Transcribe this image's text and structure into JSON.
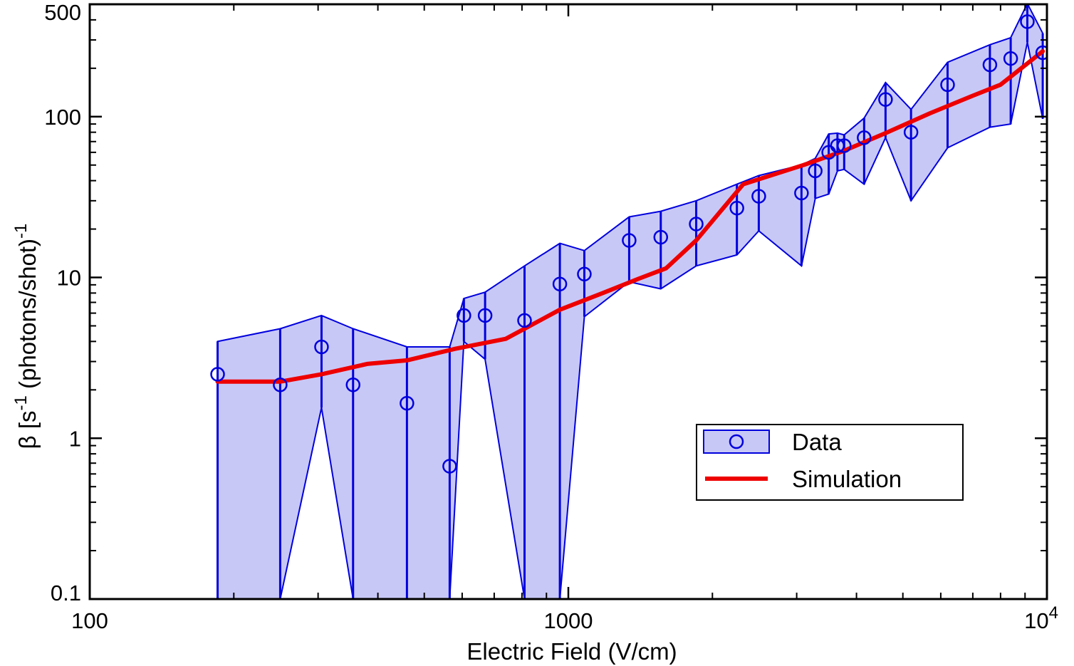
{
  "chart_data": {
    "type": "scatter",
    "xlabel": "Electric Field (V/cm)",
    "ylabel": {
      "prefix": "β [s",
      "sup1": "-1",
      "middle": " (photons/shot)",
      "sup2": "-1"
    },
    "x_scale": "log",
    "y_scale": "log",
    "xlim": [
      100,
      10000
    ],
    "ylim": [
      0.1,
      500
    ],
    "x_ticks": [
      {
        "value": 100,
        "label": "100"
      },
      {
        "value": 1000,
        "label": "1000"
      },
      {
        "value": 10000,
        "label": "10",
        "sup": "4"
      }
    ],
    "y_ticks": [
      {
        "value": 0.1,
        "label": "0.1"
      },
      {
        "value": 1,
        "label": "1"
      },
      {
        "value": 10,
        "label": "10"
      },
      {
        "value": 100,
        "label": "100"
      },
      {
        "value": 500,
        "label": "500"
      }
    ],
    "grid": false,
    "legend_position": "lower-right",
    "series": [
      {
        "name": "Data",
        "type": "scatter-with-band",
        "color": "#0000dd",
        "band_fill": "#c8c8f7",
        "points": [
          {
            "x": 185,
            "y": 2.5,
            "lo": 0.1,
            "hi": 4.0
          },
          {
            "x": 250,
            "y": 2.15,
            "lo": 0.1,
            "hi": 4.8
          },
          {
            "x": 305,
            "y": 3.7,
            "lo": 1.55,
            "hi": 5.8
          },
          {
            "x": 355,
            "y": 2.15,
            "lo": 0.1,
            "hi": 4.8
          },
          {
            "x": 460,
            "y": 1.65,
            "lo": 0.1,
            "hi": 3.7
          },
          {
            "x": 565,
            "y": 0.67,
            "lo": 0.1,
            "hi": 3.7
          },
          {
            "x": 605,
            "y": 5.8,
            "lo": 4.0,
            "hi": 7.4
          },
          {
            "x": 670,
            "y": 5.8,
            "lo": 3.1,
            "hi": 8.1
          },
          {
            "x": 810,
            "y": 5.4,
            "lo": 0.1,
            "hi": 11.8
          },
          {
            "x": 960,
            "y": 9.1,
            "lo": 0.1,
            "hi": 16.3
          },
          {
            "x": 1080,
            "y": 10.5,
            "lo": 5.7,
            "hi": 14.7
          },
          {
            "x": 1340,
            "y": 17.0,
            "lo": 9.4,
            "hi": 23.8
          },
          {
            "x": 1560,
            "y": 17.8,
            "lo": 8.5,
            "hi": 25.8
          },
          {
            "x": 1850,
            "y": 21.5,
            "lo": 11.8,
            "hi": 30.0
          },
          {
            "x": 2250,
            "y": 27.0,
            "lo": 13.8,
            "hi": 38.0
          },
          {
            "x": 2500,
            "y": 32.0,
            "lo": 19.5,
            "hi": 43.0
          },
          {
            "x": 3070,
            "y": 33.5,
            "lo": 11.8,
            "hi": 50.0
          },
          {
            "x": 3280,
            "y": 46.0,
            "lo": 31.0,
            "hi": 55.0
          },
          {
            "x": 3500,
            "y": 60.0,
            "lo": 33.0,
            "hi": 78.0
          },
          {
            "x": 3650,
            "y": 66.0,
            "lo": 46.0,
            "hi": 79.0
          },
          {
            "x": 3770,
            "y": 66.0,
            "lo": 47.0,
            "hi": 77.0
          },
          {
            "x": 4150,
            "y": 74.0,
            "lo": 38.0,
            "hi": 98.0
          },
          {
            "x": 4600,
            "y": 128.0,
            "lo": 74.0,
            "hi": 163.0
          },
          {
            "x": 5200,
            "y": 80.0,
            "lo": 30.0,
            "hi": 111.0
          },
          {
            "x": 6200,
            "y": 158.0,
            "lo": 64.0,
            "hi": 218.0
          },
          {
            "x": 7600,
            "y": 210.0,
            "lo": 86.0,
            "hi": 280.0
          },
          {
            "x": 8400,
            "y": 230.0,
            "lo": 90.0,
            "hi": 310.0
          },
          {
            "x": 9100,
            "y": 390.0,
            "lo": 290.0,
            "hi": 505.0
          },
          {
            "x": 9800,
            "y": 250.0,
            "lo": 97.0,
            "hi": 330.0
          }
        ]
      },
      {
        "name": "Simulation",
        "type": "line",
        "color": "#ee0000",
        "x": [
          185,
          250,
          305,
          380,
          460,
          580,
          740,
          960,
          1180,
          1400,
          1600,
          1850,
          2320,
          3100,
          3750,
          4600,
          5700,
          7000,
          8000,
          9800
        ],
        "y": [
          2.25,
          2.25,
          2.5,
          2.9,
          3.05,
          3.6,
          4.15,
          6.3,
          8.0,
          9.8,
          11.4,
          17.0,
          38.0,
          50.0,
          61.0,
          79.0,
          105.0,
          135.0,
          158.0,
          255.0
        ]
      }
    ]
  }
}
